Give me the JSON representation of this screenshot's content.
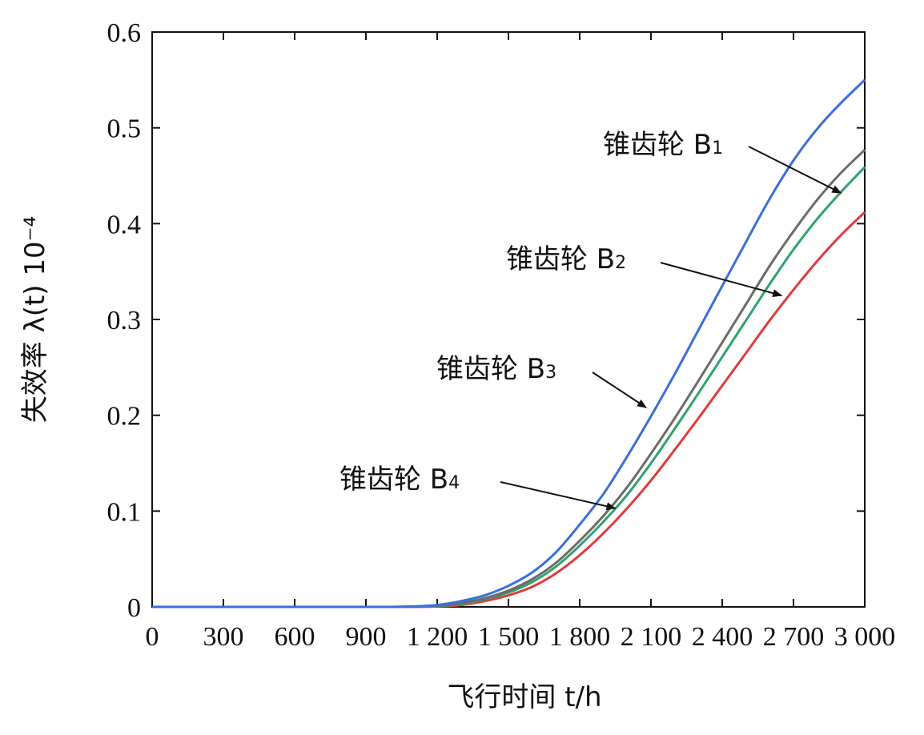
{
  "chart_data": {
    "type": "line",
    "xlabel": "飞行时间 t/h",
    "ylabel": "失效率 λ(t) 10⁻⁴",
    "xlim": [
      0,
      3000
    ],
    "ylim": [
      0,
      0.6
    ],
    "x_ticks": [
      0,
      300,
      600,
      900,
      1200,
      1500,
      1800,
      2100,
      2400,
      2700,
      3000
    ],
    "x_tick_labels": [
      "0",
      "300",
      "600",
      "900",
      "1 200",
      "1 500",
      "1 800",
      "2 100",
      "2 400",
      "2 700",
      "3 000"
    ],
    "y_ticks": [
      0,
      0.1,
      0.2,
      0.3,
      0.4,
      0.5,
      0.6
    ],
    "y_tick_labels": [
      "0",
      "0.1",
      "0.2",
      "0.3",
      "0.4",
      "0.5",
      "0.6"
    ],
    "grid": false,
    "x": [
      0,
      300,
      600,
      900,
      1000,
      1100,
      1200,
      1300,
      1400,
      1500,
      1600,
      1700,
      1800,
      1900,
      2000,
      2100,
      2200,
      2300,
      2400,
      2500,
      2600,
      2700,
      2800,
      2900,
      3000
    ],
    "series": [
      {
        "color": "#3a6fd8",
        "values": [
          0,
          0,
          0,
          0,
          0,
          0.0005,
          0.002,
          0.006,
          0.012,
          0.022,
          0.036,
          0.057,
          0.086,
          0.118,
          0.157,
          0.199,
          0.243,
          0.289,
          0.335,
          0.381,
          0.426,
          0.466,
          0.499,
          0.526,
          0.55
        ]
      },
      {
        "color": "#6b6b6b",
        "values": [
          0,
          0,
          0,
          0,
          0,
          0.0003,
          0.001,
          0.004,
          0.009,
          0.017,
          0.029,
          0.046,
          0.069,
          0.095,
          0.125,
          0.16,
          0.197,
          0.236,
          0.276,
          0.316,
          0.356,
          0.392,
          0.425,
          0.453,
          0.477
        ]
      },
      {
        "color": "#2fa36b",
        "values": [
          0,
          0,
          0,
          0,
          0,
          0.0002,
          0.0008,
          0.003,
          0.008,
          0.015,
          0.026,
          0.042,
          0.064,
          0.089,
          0.117,
          0.15,
          0.186,
          0.223,
          0.261,
          0.299,
          0.337,
          0.373,
          0.405,
          0.433,
          0.459
        ]
      },
      {
        "color": "#e03b3b",
        "values": [
          0,
          0,
          0,
          0,
          0,
          0.0001,
          0.0005,
          0.002,
          0.006,
          0.012,
          0.021,
          0.035,
          0.054,
          0.077,
          0.103,
          0.132,
          0.164,
          0.197,
          0.231,
          0.265,
          0.299,
          0.331,
          0.361,
          0.388,
          0.412
        ]
      }
    ],
    "annotations": [
      {
        "text": "锥齿轮 B",
        "sub": "1",
        "target": [
          2900,
          0.432
        ]
      },
      {
        "text": "锥齿轮 B",
        "sub": "2",
        "target": [
          2650,
          0.325
        ]
      },
      {
        "text": "锥齿轮 B",
        "sub": "3",
        "target": [
          2080,
          0.208
        ]
      },
      {
        "text": "锥齿轮 B",
        "sub": "4",
        "target": [
          1950,
          0.103
        ]
      }
    ]
  }
}
